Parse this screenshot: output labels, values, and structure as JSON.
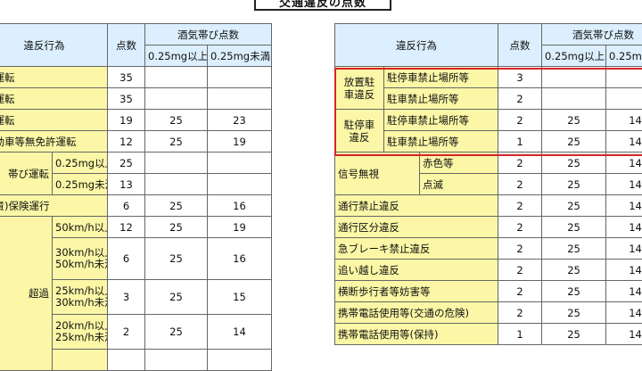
{
  "page_title": "交通違反の点数",
  "headers": {
    "violation": "違反行為",
    "points": "点数",
    "alcohol": "酒気帯び点数",
    "alc_high": "0.25mg以上",
    "alc_low": "0.25mg未満"
  },
  "left_rows": [
    {
      "label": "い運転",
      "points": "35",
      "high": "",
      "low": ""
    },
    {
      "label": "等運転",
      "points": "35",
      "high": "",
      "low": ""
    },
    {
      "label": "許運転",
      "points": "19",
      "high": "25",
      "low": "23"
    },
    {
      "label": "自動車等無免許運転",
      "points": "12",
      "high": "25",
      "low": "19"
    },
    {
      "group": "帯び運転",
      "sub": "0.25mg以上",
      "points": "25"
    },
    {
      "sub": "0.25mg未満",
      "points": "13"
    },
    {
      "label": "賠責)保険運行",
      "points": "6",
      "high": "25",
      "low": "16"
    },
    {
      "group": "超過",
      "sub": "50km/h以上",
      "points": "12",
      "high": "25",
      "low": "19"
    },
    {
      "sub1": "30km/h以上",
      "sub2": "50km/h未満",
      "points": "6",
      "high": "25",
      "low": "16"
    },
    {
      "sub1": "25km/h以上",
      "sub2": "30km/h未満",
      "points": "3",
      "high": "25",
      "low": "15"
    },
    {
      "sub1": "20km/h以上",
      "sub2": "25km/h未満",
      "points": "2",
      "high": "25",
      "low": "14"
    }
  ],
  "right_rows": [
    {
      "group1": "放置駐",
      "group2": "車違反",
      "sub": "駐停車禁止場所等",
      "points": "3",
      "high": "",
      "low": ""
    },
    {
      "sub": "駐車禁止場所等",
      "points": "2",
      "high": "",
      "low": ""
    },
    {
      "group1": "駐停車",
      "group2": "違反",
      "sub": "駐停車禁止場所等",
      "points": "2",
      "high": "25",
      "low": "14"
    },
    {
      "sub": "駐車禁止場所等",
      "points": "1",
      "high": "25",
      "low": "14"
    },
    {
      "group": "信号無視",
      "sub": "赤色等",
      "points": "2",
      "high": "25",
      "low": "14"
    },
    {
      "sub": "点滅",
      "points": "2",
      "high": "25",
      "low": "14"
    },
    {
      "label": "通行禁止違反",
      "points": "2",
      "high": "25",
      "low": "14"
    },
    {
      "label": "通行区分違反",
      "points": "2",
      "high": "25",
      "low": "14"
    },
    {
      "label": "急ブレーキ禁止違反",
      "points": "2",
      "high": "25",
      "low": "14"
    },
    {
      "label": "追い越し違反",
      "points": "2",
      "high": "25",
      "low": "14"
    },
    {
      "label": "横断歩行者等妨害等",
      "points": "2",
      "high": "25",
      "low": "14"
    },
    {
      "label": "携帯電話使用等(交通の危険)",
      "points": "2",
      "high": "25",
      "low": "14"
    },
    {
      "label": "携帯電話使用等(保持)",
      "points": "1",
      "high": "25",
      "low": "14"
    }
  ]
}
